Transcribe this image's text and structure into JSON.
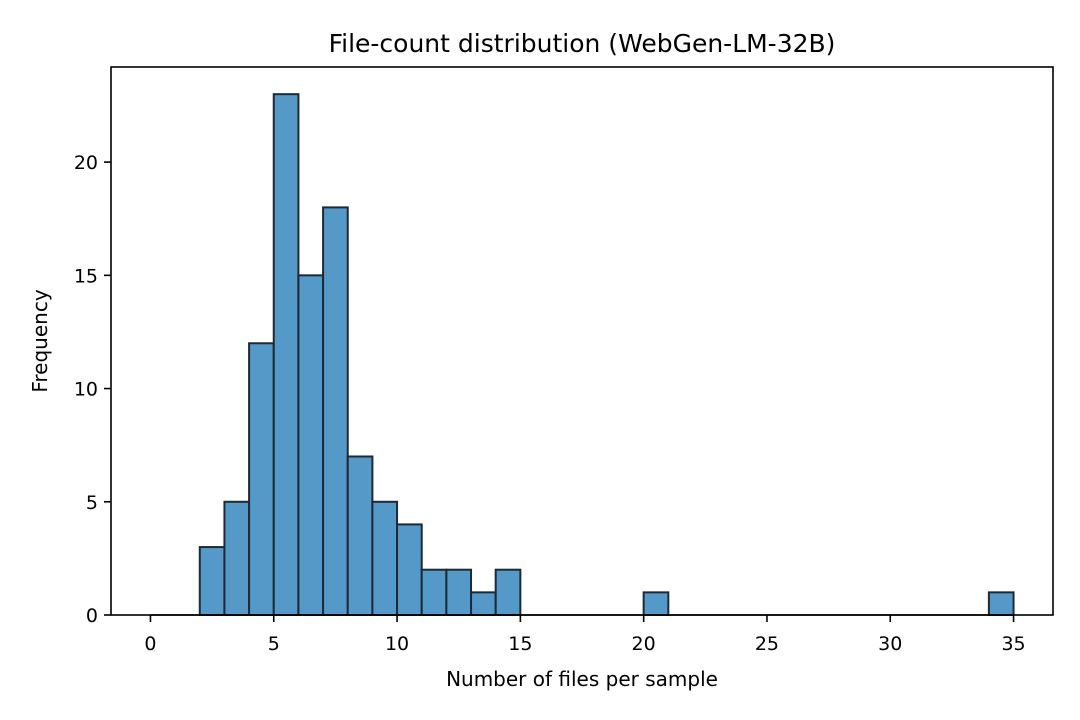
{
  "chart_data": {
    "type": "bar",
    "title": "File-count distribution (WebGen-LM-32B)",
    "xlabel": "Number of files per sample",
    "ylabel": "Frequency",
    "xlim": [
      -1.6,
      36.6
    ],
    "ylim": [
      0,
      24.2
    ],
    "x_ticks": [
      0,
      5,
      10,
      15,
      20,
      25,
      30,
      35
    ],
    "y_ticks": [
      0,
      5,
      10,
      15,
      20
    ],
    "bin_edges": [
      0,
      1,
      2,
      3,
      4,
      5,
      6,
      7,
      8,
      9,
      10,
      11,
      12,
      13,
      14,
      15,
      16,
      17,
      18,
      19,
      20,
      21,
      22,
      23,
      24,
      25,
      26,
      27,
      28,
      29,
      30,
      31,
      32,
      33,
      34,
      35
    ],
    "values": [
      0,
      0,
      3,
      5,
      12,
      23,
      15,
      18,
      7,
      5,
      4,
      2,
      2,
      1,
      2,
      0,
      0,
      0,
      0,
      0,
      1,
      0,
      0,
      0,
      0,
      0,
      0,
      0,
      0,
      0,
      0,
      0,
      0,
      0,
      1
    ],
    "grid": false,
    "colors": {
      "bar_fill": "#5599c8",
      "bar_edge": "#1e2a33"
    }
  }
}
